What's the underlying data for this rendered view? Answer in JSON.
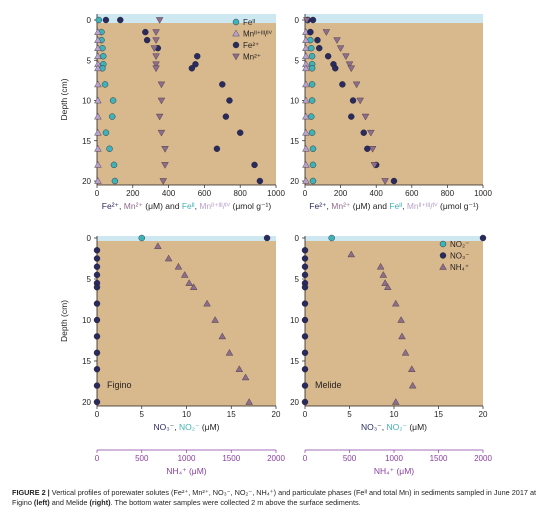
{
  "colors": {
    "sediment": "#d8b98e",
    "water": "#cde8f0",
    "teal": "#3fb2b6",
    "navy": "#2a2a5c",
    "mauve": "#8e6d8a",
    "lavender": "#b8a2cc",
    "purple_axis": "#8a3ea0",
    "axis": "#231f20"
  },
  "chart_data": [
    {
      "type": "scatter",
      "panel": "top-left",
      "ylabel": "Depth (cm)",
      "xlabel_parts": [
        "Fe²⁺",
        ", ",
        "Mn²⁺",
        " (μM) and ",
        "Feᴵᴵ",
        ", ",
        "Mnᴵᴵ⁺ᴵᴵᴵ/ᴵⱽ",
        " (μmol g⁻¹)"
      ],
      "xlim": [
        0,
        1000
      ],
      "ylim": [
        20,
        0
      ],
      "xticks": [
        0,
        200,
        400,
        600,
        800,
        1000
      ],
      "yticks": [
        0,
        5,
        10,
        15,
        20
      ],
      "series": [
        {
          "key": "FeII",
          "marker": "circle",
          "color": "teal",
          "points": [
            [
              10,
              0
            ],
            [
              25,
              1.5
            ],
            [
              25,
              2.5
            ],
            [
              30,
              3.5
            ],
            [
              35,
              4.5
            ],
            [
              35,
              5.5
            ],
            [
              30,
              6
            ],
            [
              45,
              8
            ],
            [
              90,
              10
            ],
            [
              85,
              12
            ],
            [
              50,
              14
            ],
            [
              70,
              16
            ],
            [
              95,
              18
            ],
            [
              100,
              20
            ]
          ]
        },
        {
          "key": "MnIII",
          "marker": "triangle-up",
          "color": "lavender",
          "points": [
            [
              5,
              1.5
            ],
            [
              5,
              2.5
            ],
            [
              5,
              3.5
            ],
            [
              5,
              4.5
            ],
            [
              5,
              5.5
            ],
            [
              5,
              6
            ],
            [
              5,
              8
            ],
            [
              5,
              10
            ],
            [
              5,
              12
            ],
            [
              5,
              14
            ],
            [
              5,
              16
            ],
            [
              5,
              18
            ],
            [
              5,
              20
            ]
          ]
        },
        {
          "key": "Fe2",
          "marker": "circle",
          "color": "navy",
          "points": [
            [
              50,
              0
            ],
            [
              130,
              0
            ],
            [
              270,
              1.5
            ],
            [
              280,
              2.5
            ],
            [
              340,
              3.5
            ],
            [
              560,
              4.5
            ],
            [
              550,
              5.5
            ],
            [
              530,
              6
            ],
            [
              700,
              8
            ],
            [
              740,
              10
            ],
            [
              720,
              12
            ],
            [
              800,
              14
            ],
            [
              670,
              16
            ],
            [
              880,
              18
            ],
            [
              910,
              20
            ]
          ]
        },
        {
          "key": "Mn2",
          "marker": "triangle-down",
          "color": "mauve",
          "points": [
            [
              350,
              0
            ],
            [
              330,
              1.5
            ],
            [
              330,
              2.5
            ],
            [
              320,
              3.5
            ],
            [
              330,
              4.5
            ],
            [
              330,
              5.5
            ],
            [
              330,
              6
            ],
            [
              360,
              8
            ],
            [
              360,
              10
            ],
            [
              350,
              12
            ],
            [
              360,
              14
            ],
            [
              380,
              16
            ],
            [
              380,
              18
            ],
            [
              370,
              20
            ]
          ]
        }
      ],
      "legend": {
        "placement": "top-right",
        "entries": [
          {
            "label": "Feᴵᴵ",
            "series": "FeII"
          },
          {
            "label": "Mnᴵᴵ⁺ᴵᴵᴵ/ᴵⱽ",
            "series": "MnIII"
          },
          {
            "label": "Fe²⁺",
            "series": "Fe2"
          },
          {
            "label": "Mn²⁺",
            "series": "Mn2"
          }
        ]
      }
    },
    {
      "type": "scatter",
      "panel": "top-right",
      "xlabel_parts": [
        "Fe²⁺",
        ", ",
        "Mn²⁺",
        " (μM) and ",
        "Feᴵᴵ",
        ", ",
        "Mnᴵᴵ⁺ᴵᴵᴵ/ᴵⱽ",
        " (μmol g⁻¹)"
      ],
      "xlim": [
        0,
        1000
      ],
      "ylim": [
        20,
        0
      ],
      "xticks": [
        0,
        200,
        400,
        600,
        800,
        1000
      ],
      "yticks": [
        0,
        5,
        10,
        15,
        20
      ],
      "series": [
        {
          "key": "FeII",
          "marker": "circle",
          "color": "teal",
          "points": [
            [
              15,
              0
            ],
            [
              30,
              1.5
            ],
            [
              30,
              2.5
            ],
            [
              35,
              3.5
            ],
            [
              40,
              4.5
            ],
            [
              40,
              5.5
            ],
            [
              40,
              6
            ],
            [
              40,
              8
            ],
            [
              40,
              10
            ],
            [
              35,
              12
            ],
            [
              40,
              14
            ],
            [
              45,
              16
            ],
            [
              45,
              18
            ],
            [
              45,
              20
            ]
          ]
        },
        {
          "key": "MnIII",
          "marker": "triangle-up",
          "color": "lavender",
          "points": [
            [
              5,
              1.5
            ],
            [
              5,
              2.5
            ],
            [
              5,
              3.5
            ],
            [
              5,
              4.5
            ],
            [
              5,
              5.5
            ],
            [
              5,
              6
            ],
            [
              5,
              8
            ],
            [
              5,
              10
            ],
            [
              5,
              12
            ],
            [
              5,
              14
            ],
            [
              5,
              16
            ],
            [
              5,
              18
            ],
            [
              5,
              20
            ]
          ]
        },
        {
          "key": "Fe2",
          "marker": "circle",
          "color": "navy",
          "points": [
            [
              15,
              0
            ],
            [
              45,
              0
            ],
            [
              30,
              1.5
            ],
            [
              70,
              2.5
            ],
            [
              80,
              3.5
            ],
            [
              130,
              4.5
            ],
            [
              160,
              5.5
            ],
            [
              170,
              6
            ],
            [
              210,
              8
            ],
            [
              270,
              10
            ],
            [
              260,
              12
            ],
            [
              330,
              14
            ],
            [
              350,
              16
            ],
            [
              400,
              18
            ],
            [
              500,
              20
            ]
          ]
        },
        {
          "key": "Mn2",
          "marker": "triangle-down",
          "color": "mauve",
          "points": [
            [
              10,
              0
            ],
            [
              120,
              1.5
            ],
            [
              180,
              2.5
            ],
            [
              200,
              3.5
            ],
            [
              230,
              4.5
            ],
            [
              250,
              5.5
            ],
            [
              260,
              6
            ],
            [
              290,
              8
            ],
            [
              310,
              10
            ],
            [
              340,
              12
            ],
            [
              370,
              14
            ],
            [
              380,
              16
            ],
            [
              390,
              18
            ],
            [
              450,
              20
            ]
          ]
        }
      ]
    },
    {
      "type": "scatter",
      "panel": "bottom-left",
      "site": "Figino",
      "ylabel": "Depth (cm)",
      "xlabel_parts": [
        "NO₃⁻",
        ", ",
        "NO₂⁻",
        " (μM)"
      ],
      "x2label": "NH₄⁺ (μM)",
      "xlim": [
        0,
        20
      ],
      "x2lim": [
        0,
        2000
      ],
      "ylim": [
        20,
        0
      ],
      "xticks": [
        0,
        5,
        10,
        15,
        20
      ],
      "x2ticks": [
        0,
        500,
        1000,
        1500,
        2000
      ],
      "yticks": [
        0,
        5,
        10,
        15,
        20
      ],
      "series": [
        {
          "key": "NO2",
          "marker": "circle",
          "color": "teal",
          "axis": "x",
          "points": [
            [
              5,
              0
            ]
          ]
        },
        {
          "key": "NO3",
          "marker": "circle",
          "color": "navy",
          "axis": "x",
          "points": [
            [
              19,
              0
            ],
            [
              0,
              1.5
            ],
            [
              0,
              2.5
            ],
            [
              0,
              3.5
            ],
            [
              0,
              4.5
            ],
            [
              0,
              5.5
            ],
            [
              0,
              6
            ],
            [
              0,
              8
            ],
            [
              0,
              10
            ],
            [
              0,
              12
            ],
            [
              0,
              14
            ],
            [
              0,
              16
            ],
            [
              0,
              18
            ],
            [
              0,
              20
            ]
          ]
        },
        {
          "key": "NH4",
          "marker": "triangle-up",
          "color": "mauve",
          "axis": "x2",
          "points": [
            [
              680,
              1
            ],
            [
              800,
              2.5
            ],
            [
              910,
              3.5
            ],
            [
              980,
              4.5
            ],
            [
              1030,
              5.5
            ],
            [
              1080,
              6
            ],
            [
              1230,
              8
            ],
            [
              1320,
              10
            ],
            [
              1400,
              12
            ],
            [
              1480,
              14
            ],
            [
              1590,
              16
            ],
            [
              1660,
              17
            ],
            [
              1700,
              20
            ]
          ]
        }
      ]
    },
    {
      "type": "scatter",
      "panel": "bottom-right",
      "site": "Melide",
      "xlabel_parts": [
        "NO₃⁻",
        ", ",
        "NO₂⁻",
        " (μM)"
      ],
      "x2label": "NH₄⁺ (μM)",
      "xlim": [
        0,
        20
      ],
      "x2lim": [
        0,
        2000
      ],
      "ylim": [
        20,
        0
      ],
      "xticks": [
        0,
        5,
        10,
        15,
        20
      ],
      "x2ticks": [
        0,
        500,
        1000,
        1500,
        2000
      ],
      "yticks": [
        0,
        5,
        10,
        15,
        20
      ],
      "series": [
        {
          "key": "NO2",
          "marker": "circle",
          "color": "teal",
          "points": [
            [
              3,
              0
            ]
          ]
        },
        {
          "key": "NO3",
          "marker": "circle",
          "color": "navy",
          "points": [
            [
              20,
              0
            ],
            [
              0,
              1.5
            ],
            [
              0,
              2.5
            ],
            [
              0,
              3.5
            ],
            [
              0,
              4.5
            ],
            [
              0,
              5.5
            ],
            [
              0,
              6
            ],
            [
              0,
              8
            ],
            [
              0,
              10
            ],
            [
              0,
              12
            ],
            [
              0,
              14
            ],
            [
              0,
              16
            ],
            [
              0,
              18
            ],
            [
              0,
              20
            ]
          ]
        },
        {
          "key": "NH4",
          "marker": "triangle-up",
          "color": "mauve",
          "axis": "x2",
          "points": [
            [
              520,
              2
            ],
            [
              850,
              3.5
            ],
            [
              880,
              4.5
            ],
            [
              900,
              5.5
            ],
            [
              930,
              6
            ],
            [
              1020,
              8
            ],
            [
              1080,
              10
            ],
            [
              1090,
              12
            ],
            [
              1130,
              14
            ],
            [
              1200,
              16
            ],
            [
              1210,
              18
            ],
            [
              1020,
              20
            ]
          ]
        }
      ],
      "legend": {
        "placement": "top-right",
        "entries": [
          {
            "label": "NO₂⁻",
            "series": "NO2"
          },
          {
            "label": "NO₃⁻",
            "series": "NO3"
          },
          {
            "label": "NH₄⁺",
            "series": "NH4"
          }
        ]
      }
    }
  ],
  "caption": {
    "label": "FIGURE 2 |",
    "text_before_left": "Vertical profiles of porewater solutes (Fe²⁺, Mn²⁺, NO₃⁻, NO₂⁻, NH₄⁺) and particulate phases (Feᴵᴵ and total Mn) in sediments sampled in June 2017 at Figino ",
    "left": "(left)",
    "text_between": " and Melide ",
    "right": "(right)",
    "text_after": ". The bottom water samples were collected 2 m above the surface sediments."
  }
}
